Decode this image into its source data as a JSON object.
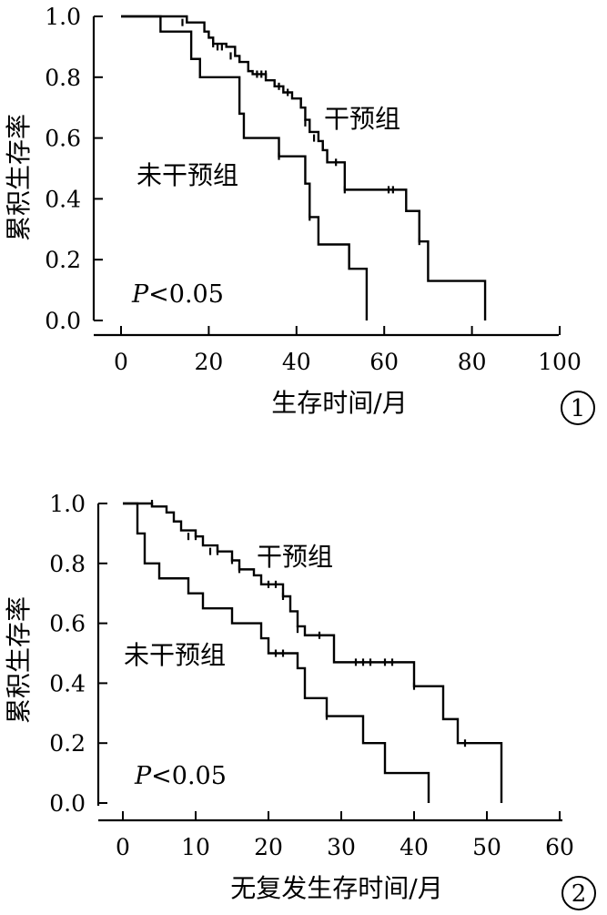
{
  "chart_data": [
    {
      "type": "line",
      "subtype": "kaplan-meier step",
      "ylabel": "累积生存率",
      "xlabel": "生存时间/月",
      "xlim": [
        0,
        100
      ],
      "ylim": [
        0,
        1
      ],
      "xticks": [
        "0",
        "20",
        "40",
        "60",
        "80",
        "100"
      ],
      "yticks": [
        "0.0",
        "0.2",
        "0.4",
        "0.6",
        "0.8",
        "1.0"
      ],
      "annotation_p": "P",
      "annotation_rest": "<0.05",
      "badge": "1",
      "series": [
        {
          "name": "干预组",
          "steps": [
            [
              0,
              1.0
            ],
            [
              15,
              0.98
            ],
            [
              19,
              0.95
            ],
            [
              20,
              0.93
            ],
            [
              21,
              0.91
            ],
            [
              24,
              0.9
            ],
            [
              26,
              0.87
            ],
            [
              27,
              0.85
            ],
            [
              29,
              0.82
            ],
            [
              30,
              0.81
            ],
            [
              33,
              0.79
            ],
            [
              35,
              0.77
            ],
            [
              37,
              0.75
            ],
            [
              39,
              0.73
            ],
            [
              41,
              0.7
            ],
            [
              42,
              0.66
            ],
            [
              43,
              0.62
            ],
            [
              45,
              0.59
            ],
            [
              46,
              0.56
            ],
            [
              47,
              0.52
            ],
            [
              51,
              0.43
            ],
            [
              64,
              0.43
            ],
            [
              65,
              0.36
            ],
            [
              68,
              0.26
            ],
            [
              70,
              0.13
            ],
            [
              83,
              0.13
            ],
            [
              83,
              0.0
            ]
          ],
          "censored": [
            [
              14,
              0.98
            ],
            [
              21,
              0.91
            ],
            [
              22,
              0.9
            ],
            [
              23,
              0.9
            ],
            [
              25,
              0.87
            ],
            [
              27,
              0.86
            ],
            [
              31,
              0.81
            ],
            [
              32,
              0.81
            ],
            [
              33,
              0.81
            ],
            [
              36,
              0.77
            ],
            [
              38,
              0.75
            ],
            [
              41,
              0.72
            ],
            [
              42,
              0.65
            ],
            [
              44,
              0.6
            ],
            [
              46,
              0.57
            ],
            [
              49,
              0.52
            ],
            [
              51,
              0.43
            ],
            [
              61,
              0.43
            ],
            [
              62,
              0.43
            ],
            [
              68,
              0.26
            ]
          ],
          "label_text": "干预组"
        },
        {
          "name": "未干预组",
          "steps": [
            [
              0,
              1.0
            ],
            [
              9,
              0.95
            ],
            [
              16,
              0.86
            ],
            [
              18,
              0.8
            ],
            [
              27,
              0.68
            ],
            [
              28,
              0.6
            ],
            [
              36,
              0.54
            ],
            [
              42,
              0.45
            ],
            [
              43,
              0.34
            ],
            [
              45,
              0.25
            ],
            [
              52,
              0.17
            ],
            [
              56,
              0.0
            ]
          ],
          "censored": [
            [
              36,
              0.54
            ],
            [
              43,
              0.34
            ]
          ],
          "label_text": "未干预组"
        }
      ]
    },
    {
      "type": "line",
      "subtype": "kaplan-meier step",
      "ylabel": "累积生存率",
      "xlabel": "无复发生存时间/月",
      "xlim": [
        0,
        60
      ],
      "ylim": [
        0,
        1
      ],
      "xticks": [
        "0",
        "10",
        "20",
        "30",
        "40",
        "50",
        "60"
      ],
      "yticks": [
        "0.0",
        "0.2",
        "0.4",
        "0.6",
        "0.8",
        "1.0"
      ],
      "annotation_p": "P",
      "annotation_rest": "<0.05",
      "badge": "2",
      "series": [
        {
          "name": "干预组",
          "steps": [
            [
              0,
              1.0
            ],
            [
              4,
              0.99
            ],
            [
              6,
              0.97
            ],
            [
              7,
              0.94
            ],
            [
              8,
              0.91
            ],
            [
              10,
              0.89
            ],
            [
              11,
              0.86
            ],
            [
              13,
              0.84
            ],
            [
              15,
              0.81
            ],
            [
              16,
              0.78
            ],
            [
              18,
              0.76
            ],
            [
              19,
              0.73
            ],
            [
              22,
              0.69
            ],
            [
              23,
              0.64
            ],
            [
              24,
              0.59
            ],
            [
              25,
              0.56
            ],
            [
              28,
              0.56
            ],
            [
              29,
              0.47
            ],
            [
              40,
              0.47
            ],
            [
              40,
              0.39
            ],
            [
              44,
              0.28
            ],
            [
              46,
              0.2
            ],
            [
              52,
              0.2
            ],
            [
              52,
              0.0
            ]
          ],
          "censored": [
            [
              4,
              1.0
            ],
            [
              9,
              0.89
            ],
            [
              10,
              0.89
            ],
            [
              12,
              0.84
            ],
            [
              13,
              0.84
            ],
            [
              15,
              0.81
            ],
            [
              16,
              0.78
            ],
            [
              20,
              0.73
            ],
            [
              21,
              0.73
            ],
            [
              22,
              0.69
            ],
            [
              24,
              0.58
            ],
            [
              27,
              0.56
            ],
            [
              32,
              0.47
            ],
            [
              33,
              0.47
            ],
            [
              34,
              0.47
            ],
            [
              36,
              0.47
            ],
            [
              37,
              0.47
            ],
            [
              40,
              0.39
            ],
            [
              47,
              0.2
            ]
          ],
          "label_text": "干预组"
        },
        {
          "name": "未干预组",
          "steps": [
            [
              0,
              1.0
            ],
            [
              2,
              0.9
            ],
            [
              3,
              0.8
            ],
            [
              5,
              0.75
            ],
            [
              9,
              0.7
            ],
            [
              11,
              0.65
            ],
            [
              15,
              0.6
            ],
            [
              19,
              0.55
            ],
            [
              20,
              0.5
            ],
            [
              24,
              0.45
            ],
            [
              25,
              0.35
            ],
            [
              28,
              0.29
            ],
            [
              33,
              0.2
            ],
            [
              36,
              0.1
            ],
            [
              42,
              0.1
            ],
            [
              42,
              0.0
            ]
          ],
          "censored": [
            [
              21,
              0.5
            ],
            [
              22,
              0.5
            ],
            [
              28,
              0.29
            ]
          ],
          "label_text": "未干预组"
        }
      ]
    }
  ]
}
